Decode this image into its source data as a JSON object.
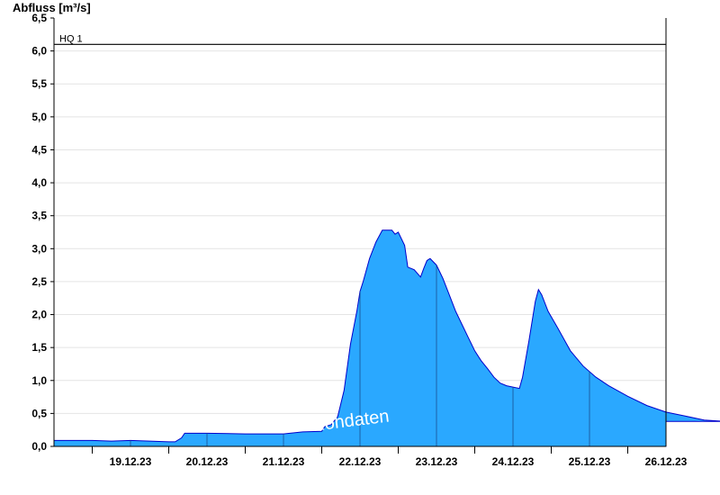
{
  "chart_data": {
    "type": "area",
    "ylabel": "Abfluss [m³/s]",
    "ylim": [
      0,
      6.5
    ],
    "yticks": [
      "0,0",
      "0,5",
      "1,0",
      "1,5",
      "2,0",
      "2,5",
      "3,0",
      "3,5",
      "4,0",
      "4,5",
      "5,0",
      "5,5",
      "6,0",
      "6,5"
    ],
    "xlim": [
      "18.12.23 12:00",
      "26.12.23 12:00"
    ],
    "xticks": [
      "19.12.23",
      "20.12.23",
      "21.12.23",
      "22.12.23",
      "23.12.23",
      "24.12.23",
      "25.12.23",
      "26.12.23"
    ],
    "grid": true,
    "reference_line": {
      "label": "HQ 1",
      "value": 6.1
    },
    "watermark": "Rohdaten",
    "series_color": "#2aa8ff",
    "series_edge_color": "#0000cc",
    "series": [
      {
        "values": [
          [
            "18.12.23 12:00",
            0.09
          ],
          [
            "18.12.23 18:00",
            0.09
          ],
          [
            "19.12.23 00:00",
            0.09
          ],
          [
            "19.12.23 06:00",
            0.08
          ],
          [
            "19.12.23 12:00",
            0.09
          ],
          [
            "19.12.23 18:00",
            0.08
          ],
          [
            "20.12.23 00:00",
            0.07
          ],
          [
            "20.12.23 02:00",
            0.07
          ],
          [
            "20.12.23 04:00",
            0.13
          ],
          [
            "20.12.23 05:00",
            0.2
          ],
          [
            "20.12.23 12:00",
            0.2
          ],
          [
            "21.12.23 00:00",
            0.19
          ],
          [
            "21.12.23 12:00",
            0.19
          ],
          [
            "21.12.23 18:00",
            0.22
          ],
          [
            "22.12.23 00:00",
            0.23
          ],
          [
            "22.12.23 01:00",
            0.3
          ],
          [
            "22.12.23 03:00",
            0.33
          ],
          [
            "22.12.23 05:00",
            0.45
          ],
          [
            "22.12.23 07:00",
            0.85
          ],
          [
            "22.12.23 09:00",
            1.55
          ],
          [
            "22.12.23 11:00",
            2.05
          ],
          [
            "22.12.23 12:00",
            2.35
          ],
          [
            "22.12.23 13:00",
            2.5
          ],
          [
            "22.12.23 15:00",
            2.85
          ],
          [
            "22.12.23 17:00",
            3.1
          ],
          [
            "22.12.23 19:00",
            3.28
          ],
          [
            "22.12.23 22:00",
            3.28
          ],
          [
            "22.12.23 23:00",
            3.22
          ],
          [
            "23.12.23 00:00",
            3.25
          ],
          [
            "23.12.23 02:00",
            3.05
          ],
          [
            "23.12.23 03:00",
            2.72
          ],
          [
            "23.12.23 05:00",
            2.68
          ],
          [
            "23.12.23 07:00",
            2.57
          ],
          [
            "23.12.23 08:00",
            2.7
          ],
          [
            "23.12.23 09:00",
            2.82
          ],
          [
            "23.12.23 10:00",
            2.85
          ],
          [
            "23.12.23 12:00",
            2.75
          ],
          [
            "23.12.23 14:00",
            2.55
          ],
          [
            "23.12.23 16:00",
            2.3
          ],
          [
            "23.12.23 18:00",
            2.05
          ],
          [
            "23.12.23 20:00",
            1.85
          ],
          [
            "23.12.23 22:00",
            1.65
          ],
          [
            "24.12.23 00:00",
            1.45
          ],
          [
            "24.12.23 02:00",
            1.3
          ],
          [
            "24.12.23 04:00",
            1.18
          ],
          [
            "24.12.23 06:00",
            1.05
          ],
          [
            "24.12.23 08:00",
            0.96
          ],
          [
            "24.12.23 10:00",
            0.92
          ],
          [
            "24.12.23 12:00",
            0.9
          ],
          [
            "24.12.23 14:00",
            0.88
          ],
          [
            "24.12.23 15:00",
            1.05
          ],
          [
            "24.12.23 17:00",
            1.6
          ],
          [
            "24.12.23 19:00",
            2.2
          ],
          [
            "24.12.23 20:00",
            2.38
          ],
          [
            "24.12.23 21:00",
            2.3
          ],
          [
            "24.12.23 23:00",
            2.05
          ],
          [
            "25.12.23 02:00",
            1.8
          ],
          [
            "25.12.23 06:00",
            1.45
          ],
          [
            "25.12.23 10:00",
            1.22
          ],
          [
            "25.12.23 14:00",
            1.05
          ],
          [
            "25.12.23 18:00",
            0.92
          ],
          [
            "26.12.23 00:00",
            0.76
          ],
          [
            "26.12.23 06:00",
            0.62
          ],
          [
            "26.12.23 12:00",
            0.52
          ],
          [
            "26.12.23 18:00",
            0.46
          ],
          [
            "27.12.23 00:00",
            0.4
          ],
          [
            "27.12.23 06:00",
            0.38
          ]
        ]
      }
    ]
  }
}
